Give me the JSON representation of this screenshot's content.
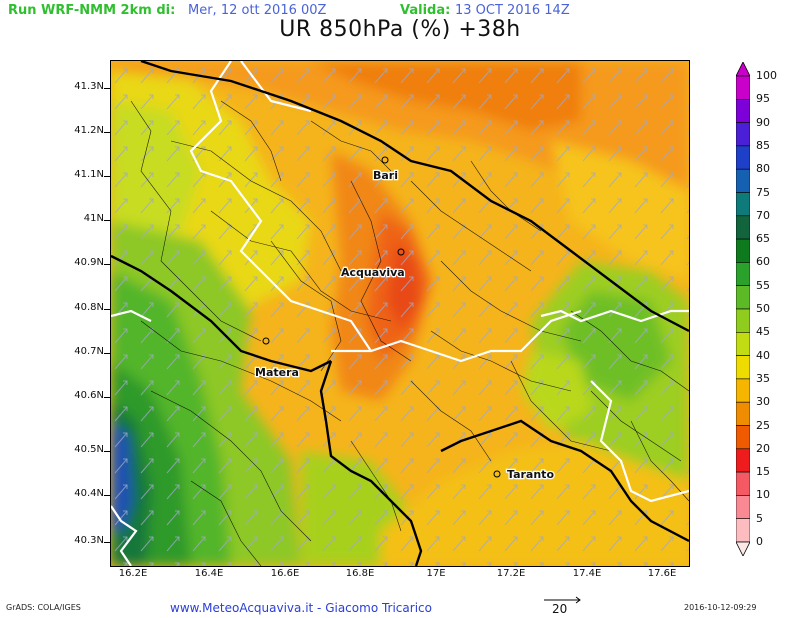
{
  "header": {
    "run_label": "Run WRF-NMM 2km di:",
    "run_date": "Mer, 12 ott 2016 00Z",
    "valid_label": "Valida:",
    "valid_date": "13 OCT 2016 14Z",
    "title": "UR 850hPa (%) +38h"
  },
  "map": {
    "y_ticks": [
      "41.3N",
      "41.2N",
      "41.1N",
      "41N",
      "40.9N",
      "40.8N",
      "40.7N",
      "40.6N",
      "40.5N",
      "40.4N",
      "40.3N"
    ],
    "x_ticks": [
      "16.2E",
      "16.4E",
      "16.6E",
      "16.8E",
      "17E",
      "17.2E",
      "17.4E",
      "17.6E"
    ],
    "cities": {
      "bari": "Bari",
      "acquaviva": "Acquaviva",
      "matera": "Matera",
      "taranto": "Taranto"
    }
  },
  "colorbar": {
    "labels": [
      "100",
      "95",
      "90",
      "85",
      "80",
      "75",
      "70",
      "65",
      "60",
      "55",
      "50",
      "45",
      "40",
      "35",
      "30",
      "25",
      "20",
      "15",
      "10",
      "5",
      "0"
    ],
    "colors": [
      "#c900c9",
      "#7d00d9",
      "#4a1fd6",
      "#1e3fc8",
      "#1560b0",
      "#0f7a7a",
      "#12643c",
      "#0e7a1e",
      "#2aa12a",
      "#5dba27",
      "#8fcc1e",
      "#c2dc14",
      "#eedc00",
      "#f6b500",
      "#f08c00",
      "#f05a00",
      "#ee1c1c",
      "#f55a64",
      "#f98a94",
      "#fcbcc0"
    ],
    "bottom_color": "#fde8e8"
  },
  "footer": {
    "left": "GrADS: COLA/IGES",
    "center": "www.MeteoAcquaviva.it - Giacomo Tricarico",
    "ref_vector": "20",
    "right": "2016-10-12-09:29"
  }
}
